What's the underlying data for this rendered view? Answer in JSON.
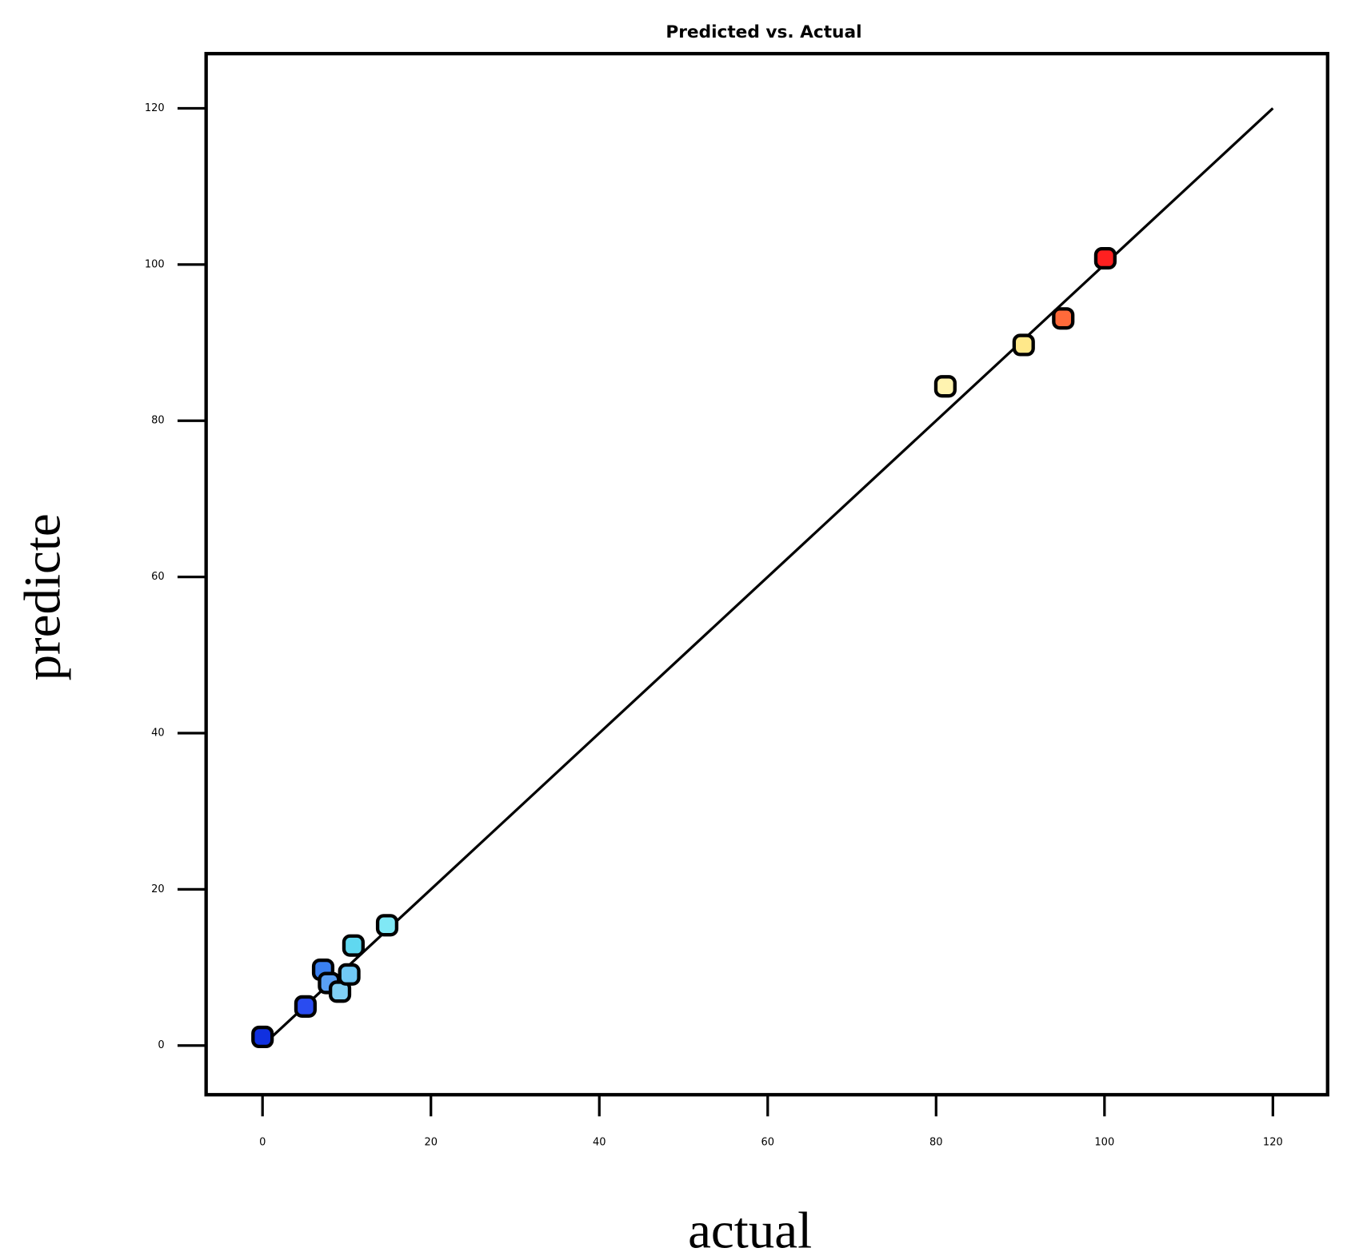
{
  "chart_data": {
    "type": "scatter",
    "title": "Predicted vs. Actual",
    "x_label": "actual",
    "y_label": "predicte",
    "xlim": [
      -6.7,
      126.5
    ],
    "ylim": [
      -6.3,
      127
    ],
    "xticks": [
      0,
      20,
      40,
      60,
      80,
      100,
      120
    ],
    "yticks": [
      0,
      20,
      40,
      60,
      80,
      100,
      120
    ],
    "series": [
      {
        "name": "points",
        "colors": [
          "#1030e0",
          "#2a4cf0",
          "#3a80f0",
          "#5aa0f5",
          "#80d0f5",
          "#70c8f5",
          "#60d8f0",
          "#80e8f5",
          "#fff3b0",
          "#ffe88a",
          "#ff6a3a",
          "#ff2020"
        ],
        "x": [
          0,
          5.1,
          7.2,
          7.9,
          9.2,
          10.3,
          10.8,
          14.8,
          81.1,
          90.4,
          95.1,
          100.1
        ],
        "values": [
          1.1,
          5.0,
          9.7,
          8.0,
          6.9,
          9.1,
          12.8,
          15.4,
          84.4,
          89.7,
          93.1,
          100.8
        ]
      }
    ],
    "fit_line": {
      "x": [
        0,
        120
      ],
      "values": [
        0,
        120
      ]
    }
  }
}
